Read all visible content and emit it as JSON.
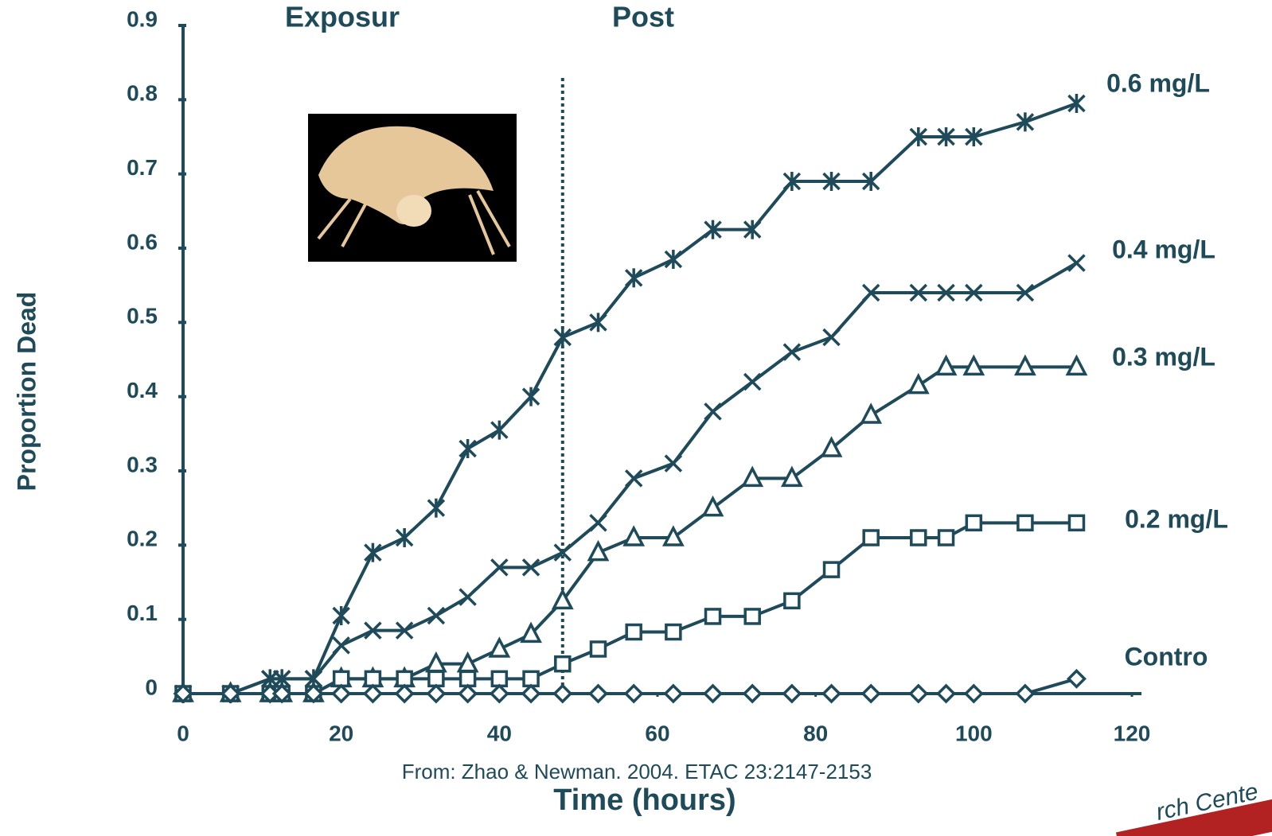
{
  "chart_data": {
    "type": "line",
    "y_label": "Proportion Dead",
    "x_label": "Time (hours)",
    "annotations": {
      "exposure": "Exposur",
      "post": "Post",
      "citation": "From: Zhao & Newman. 2004. ETAC 23:2147-2153",
      "corner": "rch Cente"
    },
    "divider_x": 48,
    "x": [
      0,
      6,
      11,
      12.5,
      16.5,
      20,
      24,
      28,
      32,
      36,
      40,
      44,
      48,
      52.5,
      57,
      62,
      67,
      72,
      77,
      82,
      87,
      93,
      96.5,
      100,
      106.5,
      113
    ],
    "series": [
      {
        "name": "0.6 mg/L",
        "marker": "asterisk",
        "color": "#1e4a5a",
        "values": [
          0,
          0,
          0.02,
          0.02,
          0.02,
          0.105,
          0.19,
          0.21,
          0.25,
          0.33,
          0.355,
          0.4,
          0.48,
          0.5,
          0.56,
          0.585,
          0.625,
          0.625,
          0.69,
          0.69,
          0.69,
          0.75,
          0.75,
          0.75,
          0.77,
          0.795
        ]
      },
      {
        "name": "0.4 mg/L",
        "marker": "cross",
        "color": "#1e4a5a",
        "values": [
          0,
          0,
          0.02,
          0.02,
          0.02,
          0.065,
          0.085,
          0.085,
          0.105,
          0.13,
          0.17,
          0.17,
          0.19,
          0.23,
          0.29,
          0.31,
          0.38,
          0.42,
          0.46,
          0.48,
          0.54,
          0.54,
          0.54,
          0.54,
          0.54,
          0.58
        ]
      },
      {
        "name": "0.3 mg/L",
        "marker": "triangle",
        "color": "#1e4a5a",
        "values": [
          0,
          0,
          0,
          0,
          0,
          0.02,
          0.02,
          0.02,
          0.04,
          0.04,
          0.06,
          0.08,
          0.125,
          0.19,
          0.21,
          0.21,
          0.25,
          0.29,
          0.29,
          0.33,
          0.375,
          0.415,
          0.44,
          0.44,
          0.44,
          0.44
        ]
      },
      {
        "name": "0.2 mg/L",
        "marker": "square",
        "color": "#1e4a5a",
        "values": [
          0,
          0,
          0,
          0,
          0,
          0.02,
          0.02,
          0.02,
          0.02,
          0.02,
          0.02,
          0.02,
          0.04,
          0.06,
          0.083,
          0.083,
          0.104,
          0.104,
          0.125,
          0.167,
          0.21,
          0.21,
          0.21,
          0.23,
          0.23,
          0.23
        ]
      },
      {
        "name": "Contro",
        "marker": "diamond",
        "color": "#1e4a5a",
        "values": [
          0,
          0,
          0,
          0,
          0,
          0,
          0,
          0,
          0,
          0,
          0,
          0,
          0,
          0,
          0,
          0,
          0,
          0,
          0,
          0,
          0,
          0,
          0,
          0,
          0,
          0.02
        ]
      }
    ],
    "xlim": [
      0,
      120
    ],
    "xticks": [
      0,
      20,
      40,
      60,
      80,
      100,
      120
    ],
    "ylim": [
      0,
      0.9
    ],
    "yticks": [
      0,
      0.1,
      0.2,
      0.3,
      0.4,
      0.5,
      0.6,
      0.7,
      0.8,
      0.9
    ]
  }
}
